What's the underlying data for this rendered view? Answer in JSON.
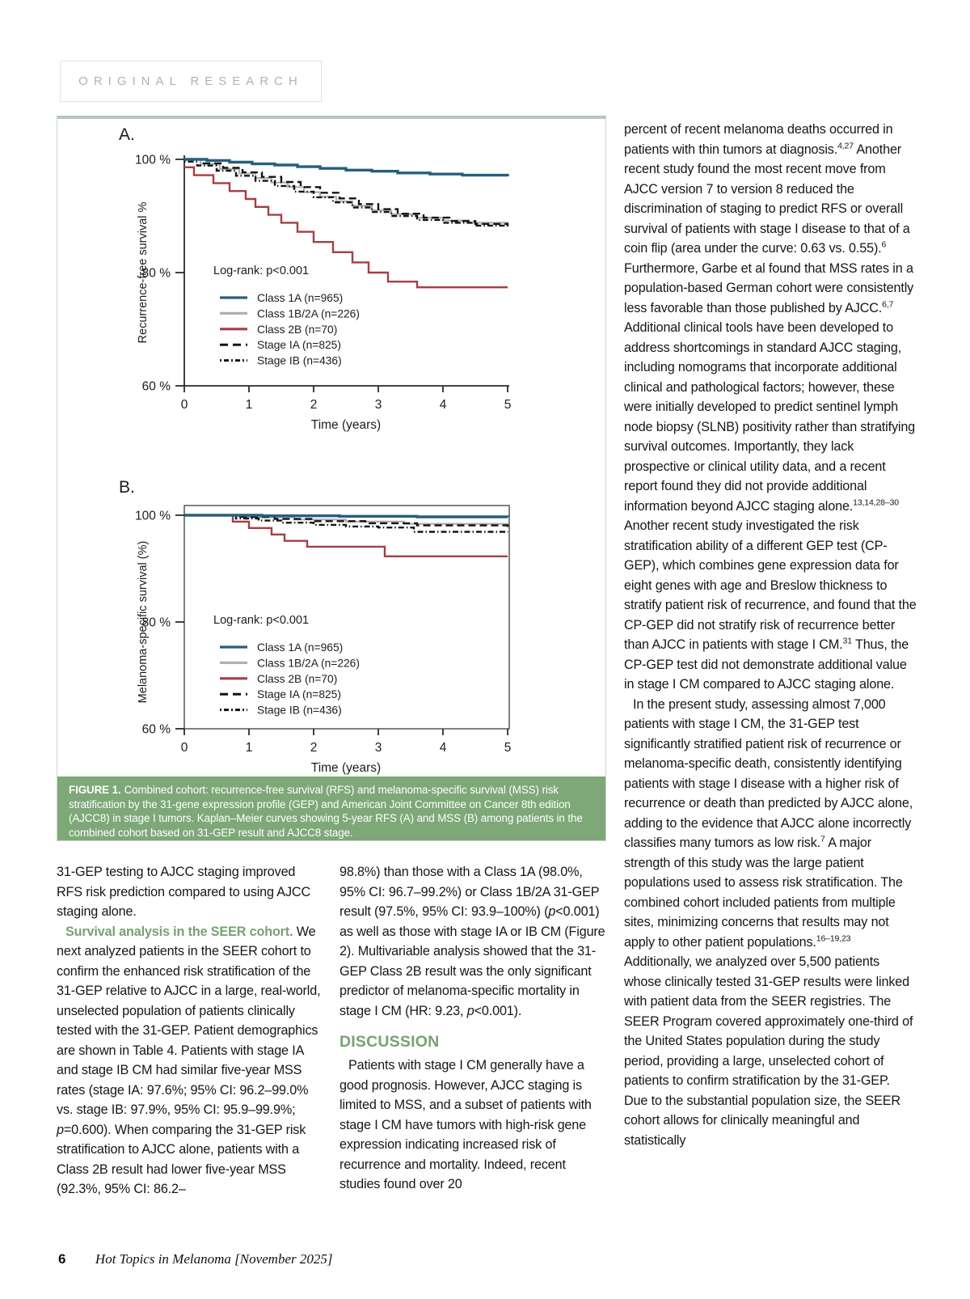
{
  "page": {
    "badge": "ORIGINAL RESEARCH",
    "footer": {
      "page_number": "6",
      "journal": "Hot Topics in Melanoma [November 2025]"
    }
  },
  "colors": {
    "caption_band_green": "#7ea878",
    "heading_green": "#76a370",
    "badge_text_green": "#a6b8aa",
    "figure_top_accent": "#b5c9bb",
    "curve_blue": "#24607f",
    "curve_gray": "#b0b0b0",
    "curve_red": "#a63d44",
    "curve_black": "#141414"
  },
  "figure": {
    "caption_label": "FIGURE 1.",
    "caption_text": "Combined cohort: recurrence-free survival (RFS) and melanoma-specific survival (MSS) risk stratification by the 31-gene expression profile (GEP) and American Joint Committee on Cancer 8th edition (AJCC8) in stage I tumors. Kaplan–Meier curves showing 5-year RFS (A) and MSS (B) among patients in the combined cohort based on 31-GEP result and AJCC8 stage."
  },
  "chart_data": [
    {
      "type": "line",
      "panel_label": "A.",
      "xlabel": "Time (years)",
      "ylabel": "Recurrence-free survival %",
      "xlim": [
        0,
        5
      ],
      "ylim": [
        60,
        100
      ],
      "xticks": [
        0,
        1,
        2,
        3,
        4,
        5
      ],
      "yticks": [
        100,
        80,
        60
      ],
      "ytick_suffix": " %",
      "grid": false,
      "frame": false,
      "step": true,
      "legend_position": "inside-left",
      "annotation": "Log-rank: p<0.001",
      "series": [
        {
          "name": "Class 1A (n=965)",
          "color": "#24607f",
          "style": "solid",
          "width": 3.4,
          "points": [
            [
              0,
              100
            ],
            [
              0.35,
              99.8
            ],
            [
              0.7,
              99.5
            ],
            [
              1.05,
              99.2
            ],
            [
              1.4,
              99.0
            ],
            [
              1.75,
              98.7
            ],
            [
              2.1,
              98.4
            ],
            [
              2.5,
              98.1
            ],
            [
              2.9,
              97.9
            ],
            [
              3.3,
              97.6
            ],
            [
              3.8,
              97.4
            ],
            [
              4.3,
              97.2
            ],
            [
              5,
              97.0
            ]
          ]
        },
        {
          "name": "Class 1B/2A (n=226)",
          "color": "#b0b0b0",
          "style": "solid",
          "width": 2.2,
          "points": [
            [
              0,
              100
            ],
            [
              0.25,
              99.2
            ],
            [
              0.55,
              98.3
            ],
            [
              0.85,
              97.5
            ],
            [
              1.1,
              96.7
            ],
            [
              1.35,
              95.9
            ],
            [
              1.6,
              95.1
            ],
            [
              1.85,
              94.2
            ],
            [
              2.1,
              93.4
            ],
            [
              2.35,
              92.6
            ],
            [
              2.6,
              91.8
            ],
            [
              2.9,
              91.0
            ],
            [
              3.2,
              90.3
            ],
            [
              3.6,
              89.7
            ],
            [
              4.0,
              89.2
            ],
            [
              4.4,
              88.8
            ],
            [
              5,
              88.4
            ]
          ]
        },
        {
          "name": "Class 2B (n=70)",
          "color": "#a63d44",
          "style": "solid",
          "width": 2.4,
          "points": [
            [
              0,
              98.6
            ],
            [
              0.15,
              97.2
            ],
            [
              0.45,
              95.8
            ],
            [
              0.7,
              94.4
            ],
            [
              0.95,
              93.0
            ],
            [
              1.1,
              91.6
            ],
            [
              1.3,
              90.2
            ],
            [
              1.5,
              88.8
            ],
            [
              1.75,
              87.2
            ],
            [
              2.0,
              85.4
            ],
            [
              2.3,
              83.6
            ],
            [
              2.6,
              81.8
            ],
            [
              2.85,
              80.0
            ],
            [
              3.15,
              78.4
            ],
            [
              3.6,
              77.4
            ],
            [
              5,
              77.4
            ]
          ]
        },
        {
          "name": "Stage IA (n=825)",
          "color": "#141414",
          "style": "dashed",
          "width": 2.4,
          "points": [
            [
              0,
              100
            ],
            [
              0.3,
              99.3
            ],
            [
              0.6,
              98.5
            ],
            [
              0.9,
              97.7
            ],
            [
              1.2,
              96.9
            ],
            [
              1.5,
              96.0
            ],
            [
              1.8,
              95.1
            ],
            [
              2.1,
              94.1
            ],
            [
              2.4,
              93.1
            ],
            [
              2.7,
              92.1
            ],
            [
              3.0,
              91.2
            ],
            [
              3.3,
              90.4
            ],
            [
              3.7,
              89.7
            ],
            [
              4.1,
              89.1
            ],
            [
              4.5,
              88.6
            ],
            [
              5,
              88.2
            ]
          ]
        },
        {
          "name": "Stage IB (n=436)",
          "color": "#141414",
          "style": "dashdot",
          "width": 2.4,
          "points": [
            [
              0,
              99.6
            ],
            [
              0.2,
              98.9
            ],
            [
              0.5,
              98.0
            ],
            [
              0.8,
              97.1
            ],
            [
              1.1,
              96.2
            ],
            [
              1.4,
              95.3
            ],
            [
              1.7,
              94.3
            ],
            [
              2.0,
              93.3
            ],
            [
              2.3,
              92.4
            ],
            [
              2.6,
              91.5
            ],
            [
              2.9,
              90.7
            ],
            [
              3.2,
              90.0
            ],
            [
              3.6,
              89.3
            ],
            [
              4.0,
              88.8
            ],
            [
              4.5,
              88.3
            ],
            [
              5,
              87.9
            ]
          ]
        }
      ]
    },
    {
      "type": "line",
      "panel_label": "B.",
      "xlabel": "Time (years)",
      "ylabel": "Melanoma-specific survival (%)",
      "xlim": [
        0,
        5
      ],
      "ylim": [
        60,
        100
      ],
      "xticks": [
        0,
        1,
        2,
        3,
        4,
        5
      ],
      "yticks": [
        100,
        80,
        60
      ],
      "ytick_suffix": " %",
      "grid": false,
      "frame": true,
      "step": true,
      "legend_position": "inside-left",
      "annotation": "Log-rank: p<0.001",
      "series": [
        {
          "name": "Class 1A (n=965)",
          "color": "#24607f",
          "style": "solid",
          "width": 3.4,
          "points": [
            [
              0,
              100
            ],
            [
              1.2,
              99.9
            ],
            [
              2.4,
              99.8
            ],
            [
              3.6,
              99.7
            ],
            [
              5,
              99.6
            ]
          ]
        },
        {
          "name": "Class 1B/2A (n=226)",
          "color": "#b0b0b0",
          "style": "solid",
          "width": 2.2,
          "points": [
            [
              0,
              100
            ],
            [
              0.9,
              99.6
            ],
            [
              1.7,
              99.2
            ],
            [
              2.5,
              98.8
            ],
            [
              3.4,
              98.4
            ],
            [
              5,
              98.1
            ]
          ]
        },
        {
          "name": "Class 2B (n=70)",
          "color": "#a63d44",
          "style": "solid",
          "width": 2.4,
          "points": [
            [
              0,
              100
            ],
            [
              0.75,
              98.8
            ],
            [
              1.0,
              97.6
            ],
            [
              1.35,
              96.4
            ],
            [
              1.55,
              95.2
            ],
            [
              1.9,
              94.1
            ],
            [
              3.1,
              92.3
            ],
            [
              5,
              92.3
            ]
          ]
        },
        {
          "name": "Stage IA (n=825)",
          "color": "#141414",
          "style": "dashed",
          "width": 2.4,
          "points": [
            [
              0,
              100
            ],
            [
              0.8,
              99.7
            ],
            [
              1.4,
              99.3
            ],
            [
              2.0,
              98.9
            ],
            [
              2.8,
              98.5
            ],
            [
              3.6,
              98.1
            ],
            [
              5,
              97.8
            ]
          ]
        },
        {
          "name": "Stage IB (n=436)",
          "color": "#141414",
          "style": "dashdot",
          "width": 2.4,
          "points": [
            [
              0,
              100
            ],
            [
              0.8,
              99.4
            ],
            [
              1.15,
              99.0
            ],
            [
              1.5,
              98.6
            ],
            [
              2.0,
              98.2
            ],
            [
              2.5,
              97.9
            ],
            [
              3.0,
              97.7
            ],
            [
              3.55,
              96.9
            ],
            [
              5,
              96.8
            ]
          ]
        }
      ]
    }
  ],
  "columns": {
    "left": [
      {
        "type": "p",
        "indent": false,
        "runs": [
          {
            "t": "31-GEP testing to AJCC staging improved RFS risk prediction compared to using AJCC staging alone.",
            "s": "n"
          }
        ]
      },
      {
        "type": "p",
        "indent": true,
        "runs": [
          {
            "t": "Survival analysis in the SEER cohort. ",
            "s": "gb"
          },
          {
            "t": "We next analyzed patients in the SEER cohort to confirm the enhanced risk stratification of the 31-GEP relative to AJCC in a large, real-world, unselected population of patients clinically tested with the 31-GEP. Patient demographics are shown in Table 4. Patients with stage IA and stage IB CM had similar five-year MSS rates (stage IA: 97.6%; 95% CI: 96.2–99.0% vs. stage IB: 97.9%, 95% CI: 95.9–99.9%; ",
            "s": "n"
          },
          {
            "t": "p",
            "s": "i"
          },
          {
            "t": "=0.600). When comparing the 31-GEP risk stratification to AJCC alone, patients with a Class 2B result had lower five-year MSS (92.3%, 95% CI: 86.2–",
            "s": "n"
          }
        ]
      }
    ],
    "middle": [
      {
        "type": "p",
        "indent": false,
        "runs": [
          {
            "t": "98.8%) than those with a Class 1A (98.0%, 95% CI: 96.7–99.2%) or Class 1B/2A 31-GEP result (97.5%, 95% CI: 93.9–100%) (",
            "s": "n"
          },
          {
            "t": "p",
            "s": "i"
          },
          {
            "t": "<0.001) as well as those with stage IA or IB CM (Figure 2). Multivariable analysis showed that the 31-GEP Class 2B result was the only significant predictor of melanoma-specific mortality in stage I CM (HR: 9.23, ",
            "s": "n"
          },
          {
            "t": "p",
            "s": "i"
          },
          {
            "t": "<0.001).",
            "s": "n"
          }
        ]
      },
      {
        "type": "h",
        "runs": [
          {
            "t": "DISCUSSION",
            "s": "n"
          }
        ]
      },
      {
        "type": "p",
        "indent": true,
        "runs": [
          {
            "t": "Patients with stage I CM generally have a good prognosis. However, AJCC staging is limited to MSS, and a subset of patients with stage I CM have tumors with high-risk gene expression indicating increased risk of recurrence and mortality. Indeed, recent studies found over 20",
            "s": "n"
          }
        ]
      }
    ],
    "right": [
      {
        "type": "p",
        "indent": false,
        "runs": [
          {
            "t": "percent of recent melanoma deaths occurred in patients with thin tumors at diagnosis.",
            "s": "n"
          },
          {
            "t": "4,27",
            "s": "sup"
          },
          {
            "t": " Another recent study found the most recent move from AJCC version 7 to version 8 reduced the discrimination of staging to predict RFS or overall survival of patients with stage I disease to that of a coin flip (area under the curve: 0.63 vs. 0.55).",
            "s": "n"
          },
          {
            "t": "6",
            "s": "sup"
          },
          {
            "t": " Furthermore, Garbe et al found that MSS rates in a population-based German cohort were consistently less favorable than those published by AJCC.",
            "s": "n"
          },
          {
            "t": "6,7",
            "s": "sup"
          },
          {
            "t": " Additional clinical tools have been developed to address shortcomings in standard AJCC staging, including nomograms that incorporate additional clinical and pathological factors; however, these were initially developed to predict sentinel lymph node biopsy (SLNB) positivity rather than stratifying survival outcomes. Importantly, they lack prospective or clinical utility data, and a recent report found they did not provide additional information beyond AJCC staging alone.",
            "s": "n"
          },
          {
            "t": "13,14,28–30",
            "s": "sup"
          },
          {
            "t": " Another recent study investigated the risk stratification ability of a different GEP test (CP-GEP), which combines gene expression data for eight genes with age and Breslow thickness to stratify patient risk of recurrence, and found that the CP-GEP did not stratify risk of recurrence better than AJCC in patients with stage I CM.",
            "s": "n"
          },
          {
            "t": "31",
            "s": "sup"
          },
          {
            "t": " Thus, the CP-GEP test did not demonstrate additional value in stage I CM compared to AJCC staging alone.",
            "s": "n"
          }
        ]
      },
      {
        "type": "p",
        "indent": true,
        "runs": [
          {
            "t": "In the present study, assessing almost 7,000 patients with stage I CM, the 31-GEP test significantly stratified patient risk of recurrence or melanoma-specific death, consistently identifying patients with stage I disease with a higher risk of recurrence or death than predicted by AJCC alone, adding to the evidence that AJCC alone incorrectly classifies many tumors as low risk.",
            "s": "n"
          },
          {
            "t": "7",
            "s": "sup"
          },
          {
            "t": " A major strength of this study was the large patient populations used to assess risk stratification. The combined cohort included patients from multiple sites, minimizing concerns that results may not apply to other patient populations.",
            "s": "n"
          },
          {
            "t": "16–19,23",
            "s": "sup"
          },
          {
            "t": " Additionally, we analyzed over 5,500 patients whose clinically tested 31-GEP results were linked with patient data from the SEER registries. The SEER Program covered approximately one-third of the United States population during the study period, providing a large, unselected cohort of patients to confirm stratification by the 31-GEP. Due to the substantial population size, the SEER cohort allows for clinically meaningful and statistically",
            "s": "n"
          }
        ]
      }
    ]
  }
}
